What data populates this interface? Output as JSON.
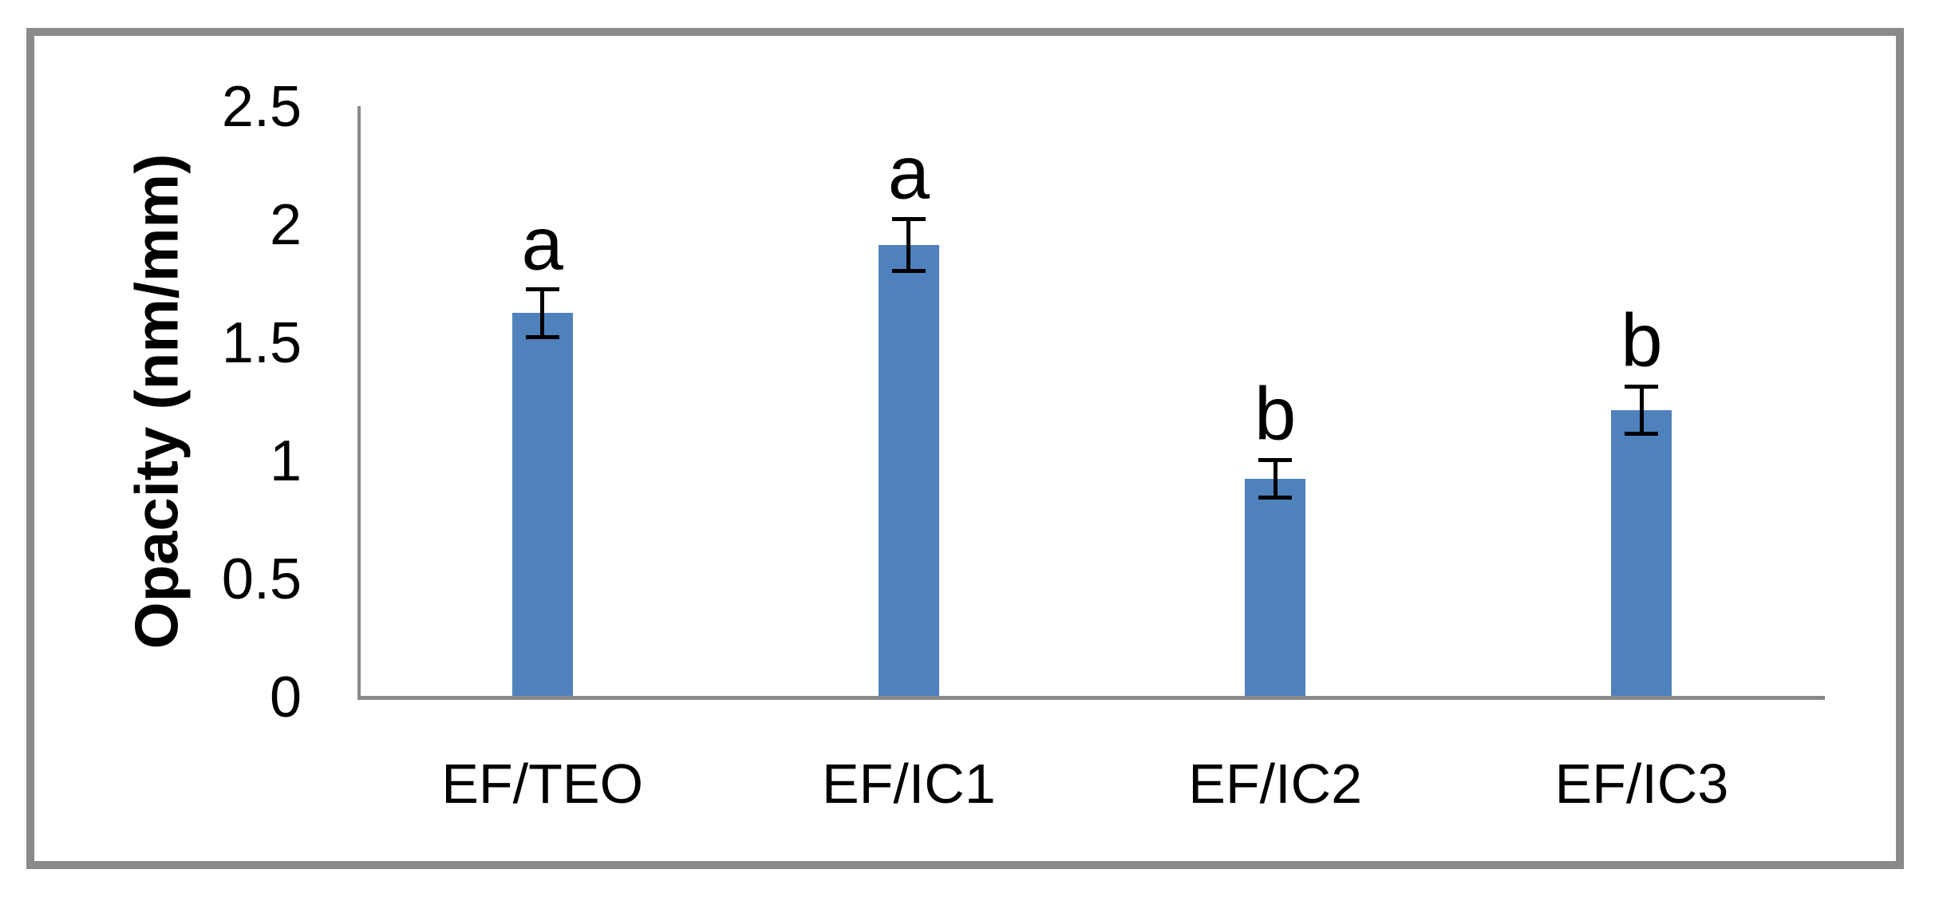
{
  "figure": {
    "background": "#FFFFFF",
    "frame_color": "#8A8A8A"
  },
  "chart_data": {
    "type": "bar",
    "title": "",
    "ylabel": "Opacity (nm/mm)",
    "xlabel": "",
    "categories": [
      "EF/TEO",
      "EF/IC1",
      "EF/IC2",
      "EF/IC3"
    ],
    "values": [
      1.62,
      1.91,
      0.92,
      1.21
    ],
    "error_bars": [
      0.1,
      0.11,
      0.08,
      0.1
    ],
    "significance_labels": [
      "a",
      "a",
      "b",
      "b"
    ],
    "ylim": [
      0,
      2.5
    ],
    "ytick_step": 0.5,
    "yticks": [
      {
        "label": "0",
        "value": 0
      },
      {
        "label": "0.5",
        "value": 0.5
      },
      {
        "label": "1",
        "value": 1
      },
      {
        "label": "1.5",
        "value": 1.5
      },
      {
        "label": "2",
        "value": 2
      },
      {
        "label": "2.5",
        "value": 2.5
      }
    ],
    "grid": false,
    "legend": false,
    "bar_color": "#4F81BD",
    "error_bar_color": "#000000",
    "axis_color": "#898989",
    "text_color": "#000000"
  }
}
